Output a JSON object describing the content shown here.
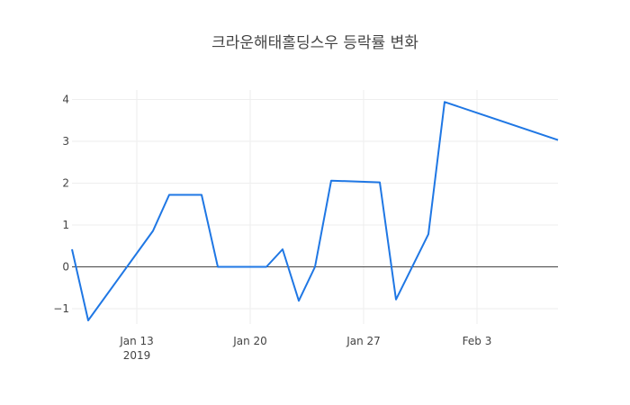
{
  "chart_data": {
    "type": "line",
    "title": "크라운해태홀딩스우 등락률 변화",
    "xlabel": "",
    "ylabel": "",
    "x": [
      "2019-01-09",
      "2019-01-10",
      "2019-01-14",
      "2019-01-15",
      "2019-01-17",
      "2019-01-18",
      "2019-01-21",
      "2019-01-22",
      "2019-01-23",
      "2019-01-24",
      "2019-01-25",
      "2019-01-28",
      "2019-01-29",
      "2019-01-31",
      "2019-02-01",
      "2019-02-08"
    ],
    "series": [
      {
        "name": "등락률",
        "color": "#1f77e4",
        "values": [
          0.42,
          -1.28,
          0.86,
          1.72,
          1.72,
          0.0,
          0.0,
          0.42,
          -0.81,
          0.0,
          2.06,
          2.02,
          -0.78,
          0.78,
          3.94,
          3.03
        ]
      }
    ],
    "ylim": [
      -1.6,
      4.3
    ],
    "yticks": [
      -1,
      0,
      1,
      2,
      3,
      4
    ],
    "ytick_labels": [
      "−1",
      "0",
      "1",
      "2",
      "3",
      "4"
    ],
    "xticks": [
      "2019-01-13",
      "2019-01-20",
      "2019-01-27",
      "2019-02-03"
    ],
    "xtick_labels": [
      "Jan 13",
      "Jan 20",
      "Jan 27",
      "Feb 3"
    ],
    "xtick_sublabel": "2019",
    "grid": true,
    "legend": false
  }
}
